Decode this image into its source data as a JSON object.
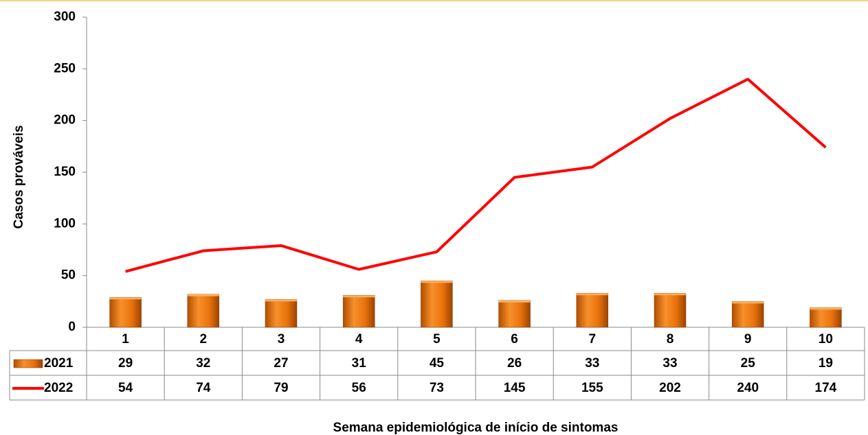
{
  "chart_data": {
    "type": "bar_line",
    "y_axis_label": "Casos prováveis",
    "x_axis_label": "Semana epidemiológica de início de sintomas",
    "categories": [
      "1",
      "2",
      "3",
      "4",
      "5",
      "6",
      "7",
      "8",
      "9",
      "10"
    ],
    "series": [
      {
        "name": "2021",
        "type": "bar",
        "color": "#e8720c",
        "values": [
          29,
          32,
          27,
          31,
          45,
          26,
          33,
          33,
          25,
          19
        ]
      },
      {
        "name": "2022",
        "type": "line",
        "color": "#ff0000",
        "values": [
          54,
          74,
          79,
          56,
          73,
          145,
          155,
          202,
          240,
          174
        ]
      }
    ],
    "ylim": [
      0,
      300
    ],
    "yticks": [
      0,
      50,
      100,
      150,
      200,
      250,
      300
    ],
    "grid": false,
    "data_table": true
  }
}
